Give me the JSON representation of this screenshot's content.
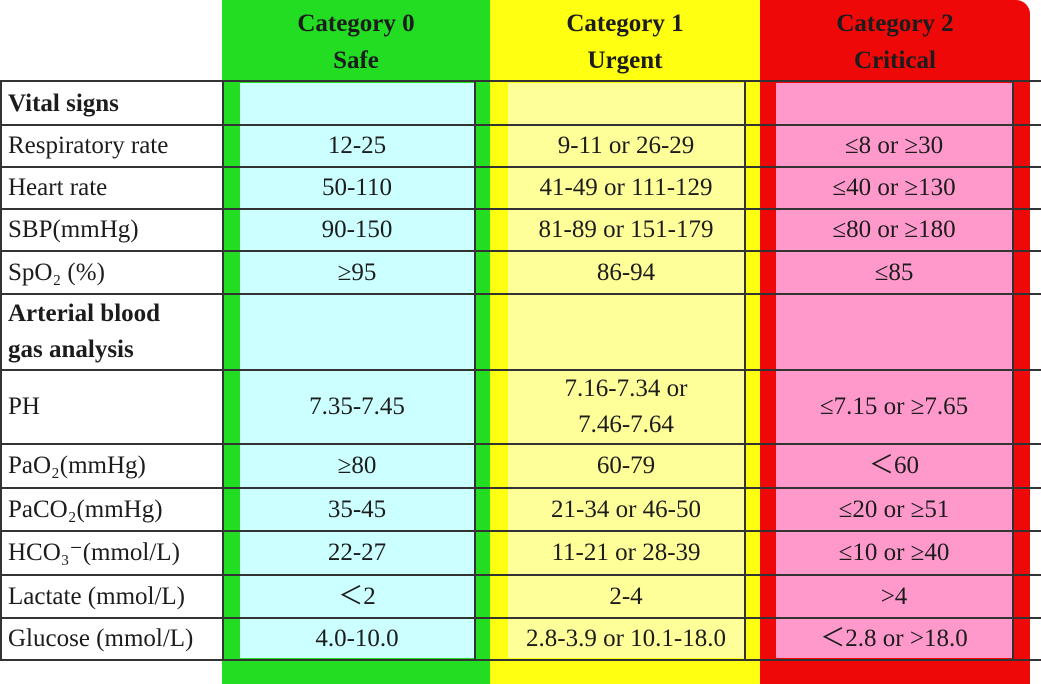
{
  "headers": [
    {
      "title": "Category 0",
      "subtitle": "Safe",
      "color": "#22dd22",
      "cell_color": "#ccffff"
    },
    {
      "title": "Category 1",
      "subtitle": "Urgent",
      "color": "#ffff11",
      "cell_color": "#ffff99"
    },
    {
      "title": "Category 2",
      "subtitle": "Critical",
      "color": "#ee0808",
      "cell_color": "#ff99cc"
    }
  ],
  "sections": {
    "vital_signs": "Vital signs",
    "abg_line1": "Arterial blood",
    "abg_line2": "gas analysis"
  },
  "rows": [
    {
      "label": "Respiratory rate",
      "values": [
        "12-25",
        "9-11 or 26-29",
        "≤8 or ≥30"
      ]
    },
    {
      "label": "Heart rate",
      "values": [
        "50-110",
        "41-49 or 111-129",
        "≤40 or ≥130"
      ]
    },
    {
      "label": "SBP(mmHg)",
      "values": [
        "90-150",
        "81-89 or 151-179",
        "≤80 or ≥180"
      ]
    },
    {
      "label": "SpO₂ (%)",
      "values": [
        "≥95",
        "86-94",
        "≤85"
      ]
    },
    {
      "label": "PH",
      "values": [
        "7.35-7.45",
        "7.16-7.34 or",
        "≤7.15 or ≥7.65"
      ],
      "urgent_line2": "7.46-7.64"
    },
    {
      "label": "PaO₂(mmHg)",
      "values": [
        "≥80",
        "60-79",
        "＜60"
      ]
    },
    {
      "label": "PaCO₂(mmHg)",
      "values": [
        "35-45",
        "21-34 or 46-50",
        "≤20 or ≥51"
      ]
    },
    {
      "label": "HCO₃⁻(mmol/L)",
      "values": [
        "22-27",
        "11-21 or 28-39",
        "≤10 or ≥40"
      ]
    },
    {
      "label": "Lactate (mmol/L)",
      "values": [
        "＜2",
        "2-4",
        ">4"
      ]
    },
    {
      "label": "Glucose (mmol/L)",
      "values": [
        "4.0-10.0",
        "2.8-3.9 or 10.1-18.0",
        "＜2.8 or >18.0"
      ]
    }
  ]
}
